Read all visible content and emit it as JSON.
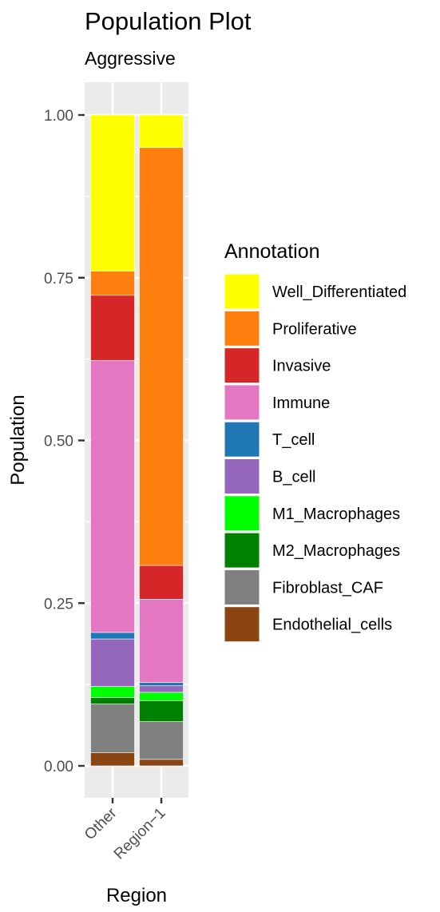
{
  "chart_data": {
    "type": "bar",
    "stacked": true,
    "title": "Population Plot",
    "subtitle": "Aggressive",
    "xlabel": "Region",
    "ylabel": "Population",
    "ylim": [
      0,
      1
    ],
    "yticks": [
      "0.00",
      "0.25",
      "0.50",
      "0.75",
      "1.00"
    ],
    "ytick_values": [
      0,
      0.25,
      0.5,
      0.75,
      1.0
    ],
    "categories": [
      "Other",
      "Region−1"
    ],
    "legend_title": "Annotation",
    "legend_position": "right",
    "grid": true,
    "series": [
      {
        "name": "Endothelial_cells",
        "color": "#8B4513",
        "values": [
          0.02,
          0.01
        ]
      },
      {
        "name": "Fibroblast_CAF",
        "color": "#808080",
        "values": [
          0.075,
          0.058
        ]
      },
      {
        "name": "M2_Macrophages",
        "color": "#008000",
        "values": [
          0.01,
          0.032
        ]
      },
      {
        "name": "M1_Macrophages",
        "color": "#00FF00",
        "values": [
          0.017,
          0.013
        ]
      },
      {
        "name": "B_cell",
        "color": "#9467BD",
        "values": [
          0.073,
          0.01
        ]
      },
      {
        "name": "T_cell",
        "color": "#1F77B4",
        "values": [
          0.01,
          0.005
        ]
      },
      {
        "name": "Immune",
        "color": "#E377C2",
        "values": [
          0.418,
          0.128
        ]
      },
      {
        "name": "Invasive",
        "color": "#D62728",
        "values": [
          0.1,
          0.052
        ]
      },
      {
        "name": "Proliferative",
        "color": "#FF7F0E",
        "values": [
          0.037,
          0.642
        ]
      },
      {
        "name": "Well_Differentiated",
        "color": "#FFFF00",
        "values": [
          0.24,
          0.05
        ]
      }
    ]
  }
}
